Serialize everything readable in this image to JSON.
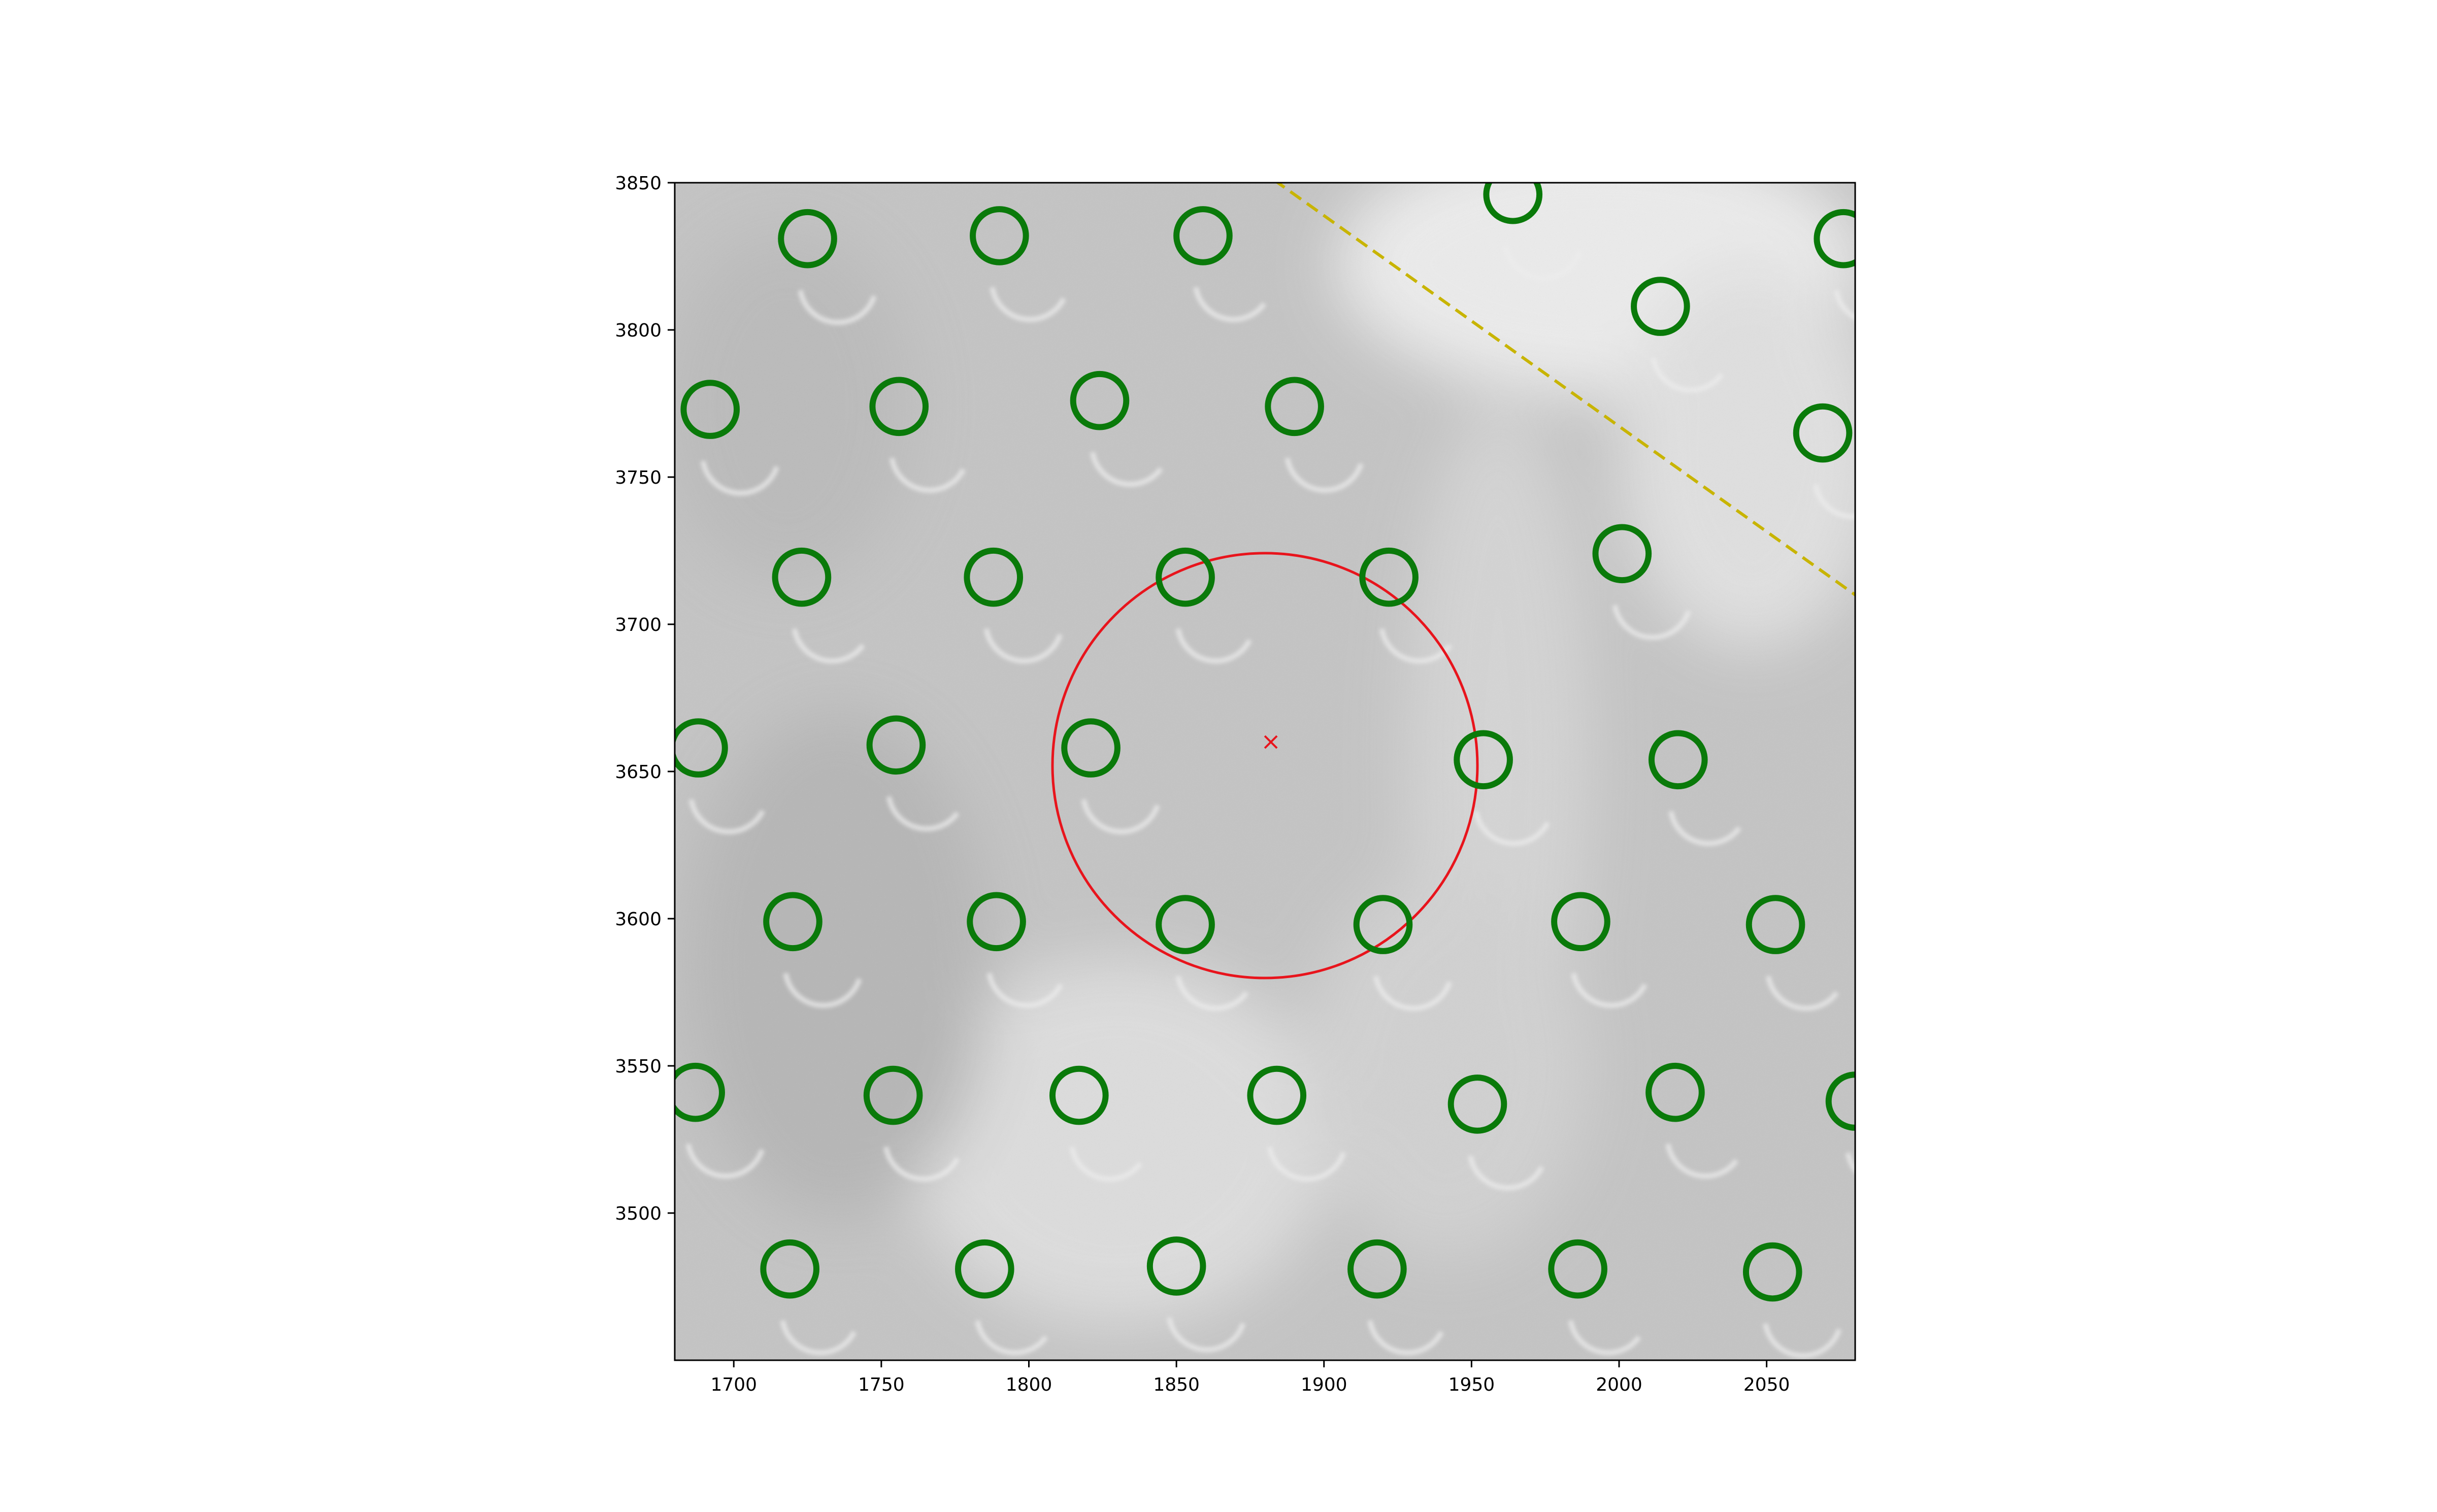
{
  "chart_data": {
    "type": "scatter",
    "title": "",
    "xlabel": "",
    "ylabel": "",
    "xlim": [
      1680,
      2080
    ],
    "ylim": [
      3450,
      3850
    ],
    "grid": false,
    "legend": "none",
    "background": "grayscale microscope image",
    "x_ticks": [
      1700,
      1750,
      1800,
      1850,
      1900,
      1950,
      2000,
      2050
    ],
    "y_ticks": [
      3500,
      3550,
      3600,
      3650,
      3700,
      3750,
      3800,
      3850
    ],
    "colors": {
      "detections": "#0a7a0a",
      "selection_circle": "#e8141c",
      "center_marker": "#e8141c",
      "boundary_line": "#c8b400",
      "image_background": "#c4c4c4"
    },
    "detections": [
      {
        "x": 1725,
        "y": 3831
      },
      {
        "x": 1790,
        "y": 3832
      },
      {
        "x": 1859,
        "y": 3832
      },
      {
        "x": 1964,
        "y": 3846
      },
      {
        "x": 2076,
        "y": 3831
      },
      {
        "x": 2014,
        "y": 3808
      },
      {
        "x": 1692,
        "y": 3773
      },
      {
        "x": 1756,
        "y": 3774
      },
      {
        "x": 1824,
        "y": 3776
      },
      {
        "x": 1890,
        "y": 3774
      },
      {
        "x": 2069,
        "y": 3765
      },
      {
        "x": 1723,
        "y": 3716
      },
      {
        "x": 1788,
        "y": 3716
      },
      {
        "x": 1853,
        "y": 3716
      },
      {
        "x": 1922,
        "y": 3716
      },
      {
        "x": 2001,
        "y": 3724
      },
      {
        "x": 1688,
        "y": 3658
      },
      {
        "x": 1755,
        "y": 3659
      },
      {
        "x": 1821,
        "y": 3658
      },
      {
        "x": 1954,
        "y": 3654
      },
      {
        "x": 2020,
        "y": 3654
      },
      {
        "x": 1720,
        "y": 3599
      },
      {
        "x": 1789,
        "y": 3599
      },
      {
        "x": 1853,
        "y": 3598
      },
      {
        "x": 1920,
        "y": 3598
      },
      {
        "x": 1987,
        "y": 3599
      },
      {
        "x": 2053,
        "y": 3598
      },
      {
        "x": 1687,
        "y": 3541
      },
      {
        "x": 1754,
        "y": 3540
      },
      {
        "x": 1817,
        "y": 3540
      },
      {
        "x": 1884,
        "y": 3540
      },
      {
        "x": 1952,
        "y": 3537
      },
      {
        "x": 2019,
        "y": 3541
      },
      {
        "x": 2080,
        "y": 3538
      },
      {
        "x": 1719,
        "y": 3481
      },
      {
        "x": 1785,
        "y": 3481
      },
      {
        "x": 1850,
        "y": 3482
      },
      {
        "x": 1918,
        "y": 3481
      },
      {
        "x": 1986,
        "y": 3481
      },
      {
        "x": 2052,
        "y": 3480
      }
    ],
    "marker_radius": 9,
    "selection_circle": {
      "cx": 1880,
      "cy": 3652,
      "r": 72
    },
    "center_marker": {
      "x": 1882,
      "y": 3660
    },
    "boundary_line": {
      "x1": 1883,
      "y1": 3851,
      "x2": 2080,
      "y2": 3710
    }
  }
}
